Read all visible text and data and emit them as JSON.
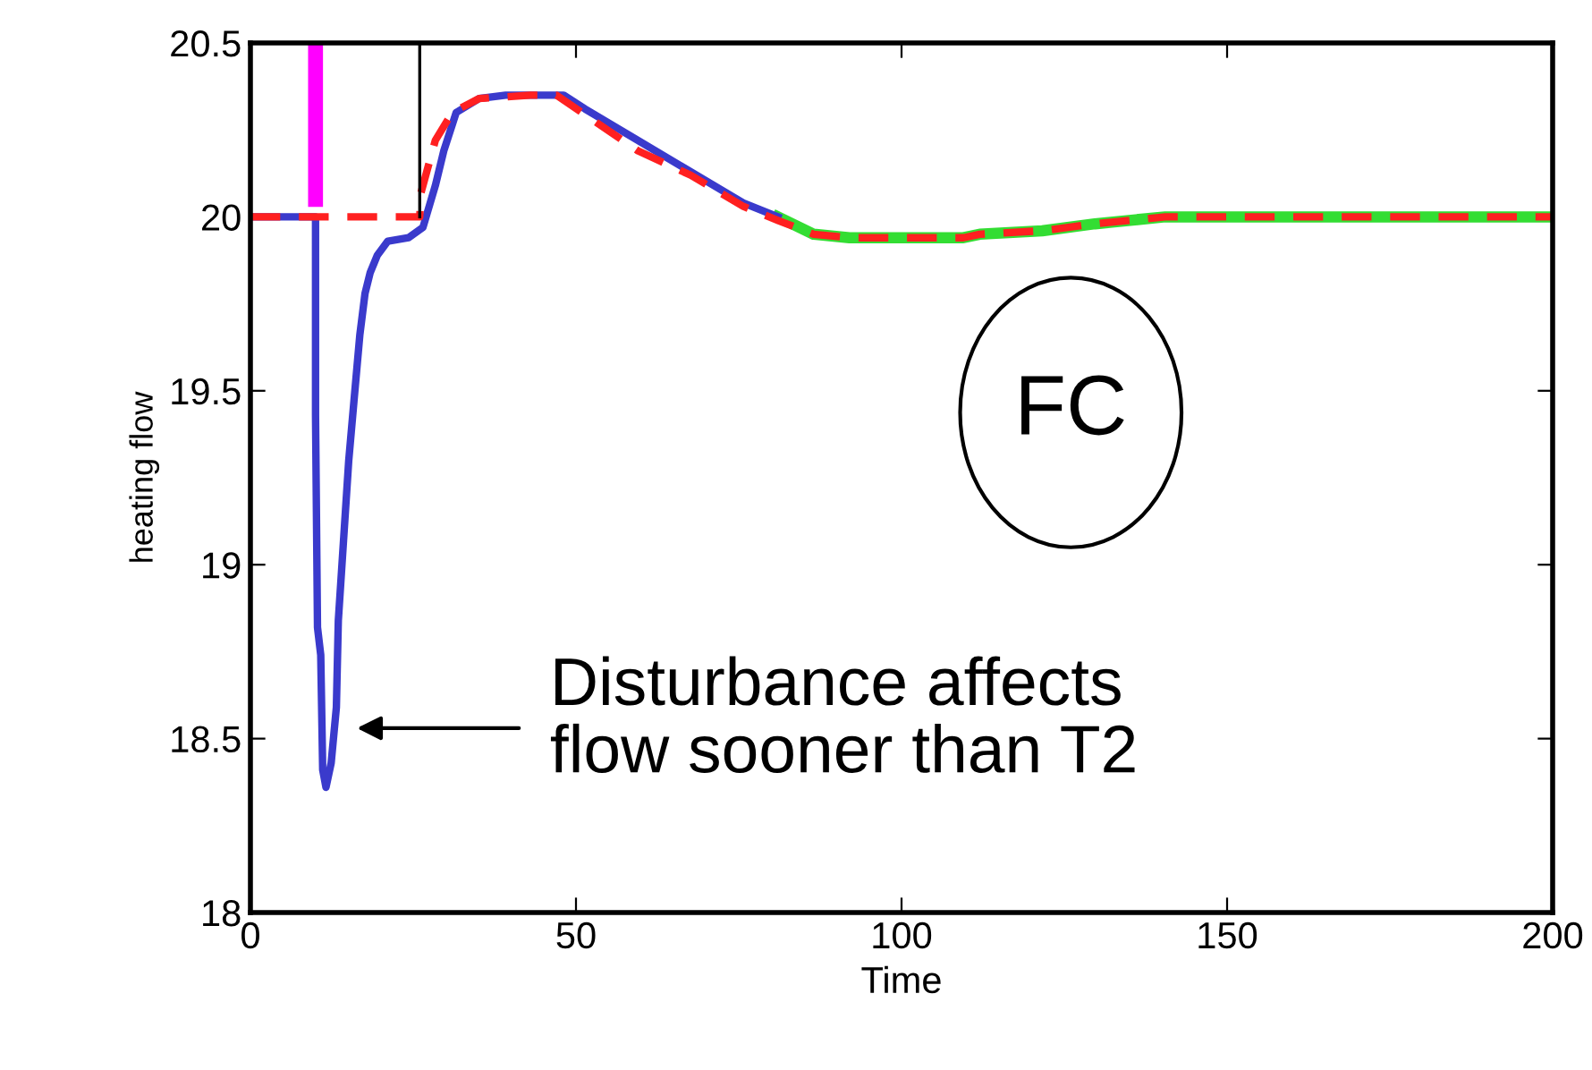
{
  "chart_data": {
    "type": "line",
    "xlabel": "Time",
    "ylabel": "heating flow",
    "xlim": [
      0,
      200
    ],
    "ylim": [
      18,
      20.5
    ],
    "xticks": [
      0,
      50,
      100,
      150,
      200
    ],
    "yticks": [
      18,
      18.5,
      19,
      19.5,
      20,
      20.5
    ],
    "grid": false,
    "legend": false,
    "marker": "none",
    "series": [
      {
        "color": "#33dd33",
        "line_style": "solid",
        "x": [
          81,
          86.5,
          92,
          109.5,
          112,
          121.6,
          129.7,
          140.5,
          200
        ],
        "values": [
          20.0,
          19.95,
          19.94,
          19.94,
          19.95,
          19.96,
          19.98,
          20.0,
          20.0
        ]
      },
      {
        "color": "#3a3acc",
        "line_style": "solid",
        "x": [
          0,
          10,
          10,
          10.3,
          10.8,
          11.1,
          11.6,
          12.4,
          13.2,
          13.5,
          14.3,
          15.1,
          15.9,
          16.8,
          17.6,
          18.4,
          19.5,
          21.1,
          24.3,
          26.5,
          28.4,
          29.7,
          31.6,
          35.1,
          39.2,
          48.1,
          51.4,
          59.5,
          67.6,
          75.7,
          81
        ],
        "values": [
          20.0,
          20.0,
          19.43,
          18.82,
          18.74,
          18.41,
          18.36,
          18.43,
          18.59,
          18.84,
          19.07,
          19.3,
          19.47,
          19.66,
          19.78,
          19.84,
          19.89,
          19.93,
          19.94,
          19.97,
          20.09,
          20.19,
          20.3,
          20.34,
          20.35,
          20.35,
          20.31,
          20.22,
          20.13,
          20.04,
          20.0
        ]
      },
      {
        "color": "#ff2020",
        "line_style": "dashed",
        "x": [
          0,
          26,
          26.2,
          28.4,
          31,
          35.1,
          43,
          47,
          59.5,
          67.6,
          75.7,
          81,
          86.5,
          92,
          109.5,
          112,
          121.6,
          129.7,
          140.5,
          200
        ],
        "values": [
          20.0,
          20.0,
          20.07,
          20.22,
          20.3,
          20.34,
          20.35,
          20.35,
          20.19,
          20.12,
          20.03,
          19.99,
          19.95,
          19.94,
          19.94,
          19.95,
          19.96,
          19.98,
          20.0,
          20.0
        ]
      },
      {
        "color": "#ff00ff",
        "line_style": "solid",
        "x": [
          10,
          10
        ],
        "values": [
          20.05,
          20.5
        ]
      },
      {
        "color": "#000000",
        "line_style": "solid",
        "x": [
          26,
          26
        ],
        "values": [
          20.0,
          20.5
        ]
      }
    ],
    "annotations": [
      "Disturbance affects\nflow sooner than T2",
      "FC"
    ]
  }
}
